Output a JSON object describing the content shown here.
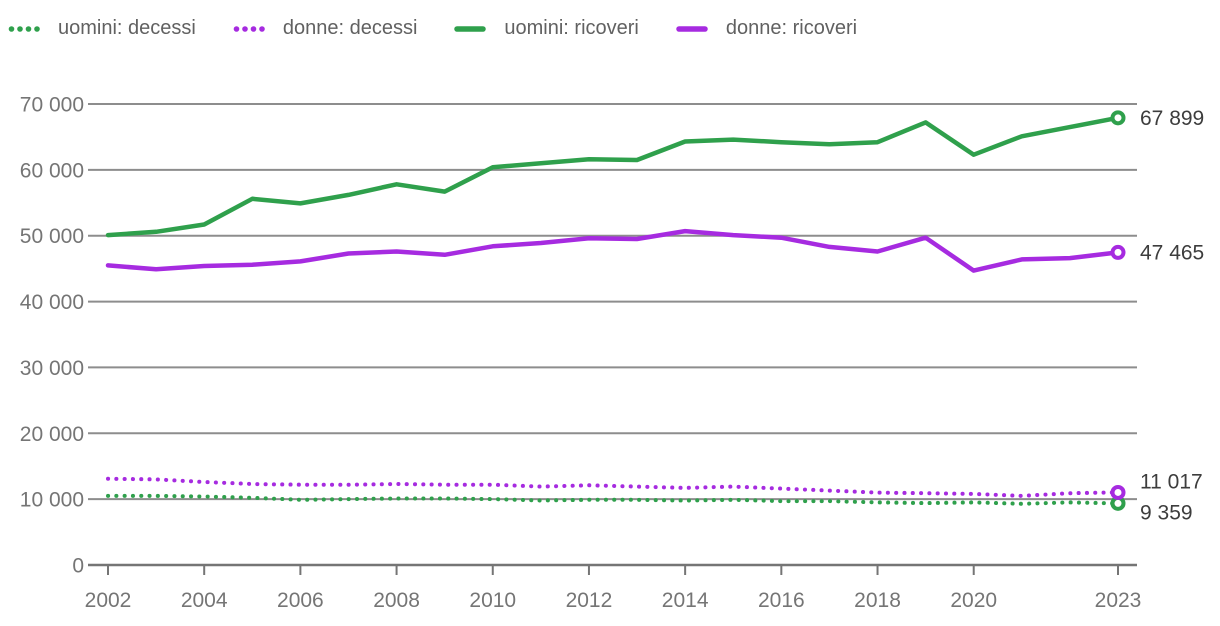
{
  "colors": {
    "grid": "#8d8d8d",
    "axis": "#757575",
    "tick_label": "#757575",
    "end_label": "#3d3d3d",
    "legend_text": "#616161",
    "green": "#2fa04c",
    "purple": "#a62be0",
    "background": "#ffffff"
  },
  "legend": {
    "items": [
      {
        "label": "uomini: decessi",
        "color": "#2fa04c",
        "style": "dotted"
      },
      {
        "label": "donne: decessi",
        "color": "#a62be0",
        "style": "dotted"
      },
      {
        "label": "uomini: ricoveri",
        "color": "#2fa04c",
        "style": "solid"
      },
      {
        "label": "donne: ricoveri",
        "color": "#a62be0",
        "style": "solid"
      }
    ]
  },
  "chart_data": {
    "type": "line",
    "x": [
      2002,
      2003,
      2004,
      2005,
      2006,
      2007,
      2008,
      2009,
      2010,
      2011,
      2012,
      2013,
      2014,
      2015,
      2016,
      2017,
      2018,
      2019,
      2020,
      2021,
      2022,
      2023
    ],
    "series": [
      {
        "name": "uomini: decessi",
        "color": "#2fa04c",
        "line_style": "dotted",
        "values": [
          10500,
          10500,
          10400,
          10200,
          9900,
          10000,
          10100,
          10100,
          10000,
          9800,
          9900,
          9900,
          9800,
          9900,
          9700,
          9700,
          9500,
          9400,
          9500,
          9300,
          9500,
          9359
        ],
        "end_label": "9 359",
        "end_label_dy": 16
      },
      {
        "name": "donne: decessi",
        "color": "#a62be0",
        "line_style": "dotted",
        "values": [
          13100,
          13000,
          12600,
          12300,
          12200,
          12200,
          12300,
          12200,
          12200,
          11900,
          12100,
          11900,
          11700,
          11900,
          11600,
          11300,
          11000,
          10900,
          10800,
          10500,
          10900,
          11017
        ],
        "end_label": "11 017",
        "end_label_dy": -4
      },
      {
        "name": "uomini: ricoveri",
        "color": "#2fa04c",
        "line_style": "solid",
        "values": [
          50100,
          50600,
          51700,
          55600,
          54900,
          56200,
          57800,
          56700,
          60400,
          61000,
          61600,
          61500,
          64300,
          64600,
          64200,
          63900,
          64200,
          67200,
          62300,
          65100,
          66500,
          67899
        ],
        "end_label": "67 899",
        "end_label_dy": 7
      },
      {
        "name": "donne: ricoveri",
        "color": "#a62be0",
        "line_style": "solid",
        "values": [
          45500,
          44900,
          45400,
          45600,
          46100,
          47300,
          47600,
          47100,
          48400,
          48900,
          49600,
          49500,
          50700,
          50100,
          49700,
          48300,
          47600,
          49700,
          44700,
          46400,
          46600,
          47465
        ],
        "end_label": "47 465",
        "end_label_dy": 7
      }
    ],
    "yticks": [
      {
        "value": 0,
        "label": "0"
      },
      {
        "value": 10000,
        "label": "10 000"
      },
      {
        "value": 20000,
        "label": "20 000"
      },
      {
        "value": 30000,
        "label": "30 000"
      },
      {
        "value": 40000,
        "label": "40 000"
      },
      {
        "value": 50000,
        "label": "50 000"
      },
      {
        "value": 60000,
        "label": "60 000"
      },
      {
        "value": 70000,
        "label": "70 000"
      }
    ],
    "xticks": [
      {
        "value": 2002,
        "label": "2002"
      },
      {
        "value": 2004,
        "label": "2004"
      },
      {
        "value": 2006,
        "label": "2006"
      },
      {
        "value": 2008,
        "label": "2008"
      },
      {
        "value": 2010,
        "label": "2010"
      },
      {
        "value": 2012,
        "label": "2012"
      },
      {
        "value": 2014,
        "label": "2014"
      },
      {
        "value": 2016,
        "label": "2016"
      },
      {
        "value": 2018,
        "label": "2018"
      },
      {
        "value": 2020,
        "label": "2020"
      },
      {
        "value": 2023,
        "label": "2023"
      }
    ],
    "ylim": [
      0,
      70000
    ],
    "xlim": [
      2002,
      2023
    ],
    "grid": true,
    "legend_position": "top",
    "title": "",
    "xlabel": "",
    "ylabel": ""
  }
}
